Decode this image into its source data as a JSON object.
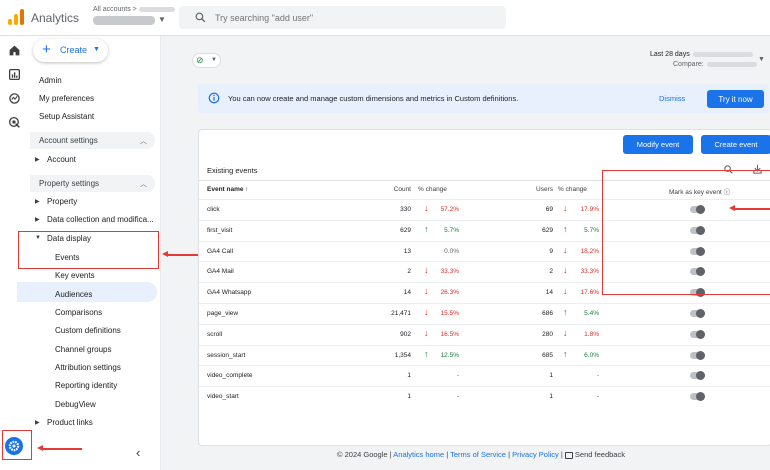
{
  "header": {
    "app_title": "Analytics",
    "accounts_label": "All accounts >",
    "search_placeholder": "Try searching \"add user\""
  },
  "sidebar": {
    "create_label": "Create",
    "items": [
      "Admin",
      "My preferences",
      "Setup Assistant"
    ],
    "account_settings": {
      "label": "Account settings",
      "children": [
        "Account"
      ]
    },
    "property_settings": {
      "label": "Property settings",
      "children": [
        "Property",
        "Data collection and modifica...",
        "Data display"
      ]
    },
    "data_display_children": [
      "Events",
      "Key events",
      "Audiences",
      "Comparisons",
      "Custom definitions",
      "Channel groups",
      "Attribution settings",
      "Reporting identity",
      "DebugView"
    ],
    "product_links": "Product links"
  },
  "date_range": {
    "label": "Last 28 days",
    "compare_label": "Compare:"
  },
  "banner": {
    "text": "You can now create and manage custom dimensions and metrics in Custom definitions.",
    "dismiss": "Dismiss",
    "try_it": "Try it now"
  },
  "events_card": {
    "modify_button": "Modify event",
    "create_button": "Create event",
    "title": "Existing events",
    "columns": {
      "name": "Event name ↑",
      "count": "Count",
      "count_change": "% change",
      "users": "Users",
      "users_change": "% change",
      "key_event": "Mark as key event"
    },
    "rows": [
      {
        "name": "click",
        "count": "330",
        "count_dir": "down",
        "count_change": "57.2%",
        "users": "69",
        "users_dir": "down",
        "users_change": "17.9%"
      },
      {
        "name": "first_visit",
        "count": "629",
        "count_dir": "up",
        "count_change": "5.7%",
        "users": "629",
        "users_dir": "up",
        "users_change": "5.7%"
      },
      {
        "name": "GA4 Call",
        "count": "13",
        "count_dir": "flat",
        "count_change": "0.0%",
        "users": "9",
        "users_dir": "down",
        "users_change": "18.2%"
      },
      {
        "name": "GA4 Mail",
        "count": "2",
        "count_dir": "down",
        "count_change": "33.3%",
        "users": "2",
        "users_dir": "down",
        "users_change": "33.3%"
      },
      {
        "name": "GA4 Whatsapp",
        "count": "14",
        "count_dir": "down",
        "count_change": "26.3%",
        "users": "14",
        "users_dir": "down",
        "users_change": "17.6%"
      },
      {
        "name": "page_view",
        "count": "21,471",
        "count_dir": "down",
        "count_change": "15.5%",
        "users": "686",
        "users_dir": "up",
        "users_change": "5.4%"
      },
      {
        "name": "scroll",
        "count": "902",
        "count_dir": "down",
        "count_change": "16.5%",
        "users": "280",
        "users_dir": "down",
        "users_change": "1.8%"
      },
      {
        "name": "session_start",
        "count": "1,354",
        "count_dir": "up",
        "count_change": "12.5%",
        "users": "685",
        "users_dir": "up",
        "users_change": "6.0%"
      },
      {
        "name": "video_complete",
        "count": "1",
        "count_dir": "none",
        "count_change": "-",
        "users": "1",
        "users_dir": "none",
        "users_change": "-"
      },
      {
        "name": "video_start",
        "count": "1",
        "count_dir": "none",
        "count_change": "-",
        "users": "1",
        "users_dir": "none",
        "users_change": "-"
      }
    ]
  },
  "footer": {
    "copyright": "© 2024 Google |",
    "home": "Analytics home",
    "terms": "Terms of Service",
    "privacy": "Privacy Policy",
    "feedback": "Send feedback"
  },
  "colors": {
    "accent": "#1a73e8",
    "up": "#188038",
    "down": "#d93025",
    "annotation": "#e53935"
  }
}
